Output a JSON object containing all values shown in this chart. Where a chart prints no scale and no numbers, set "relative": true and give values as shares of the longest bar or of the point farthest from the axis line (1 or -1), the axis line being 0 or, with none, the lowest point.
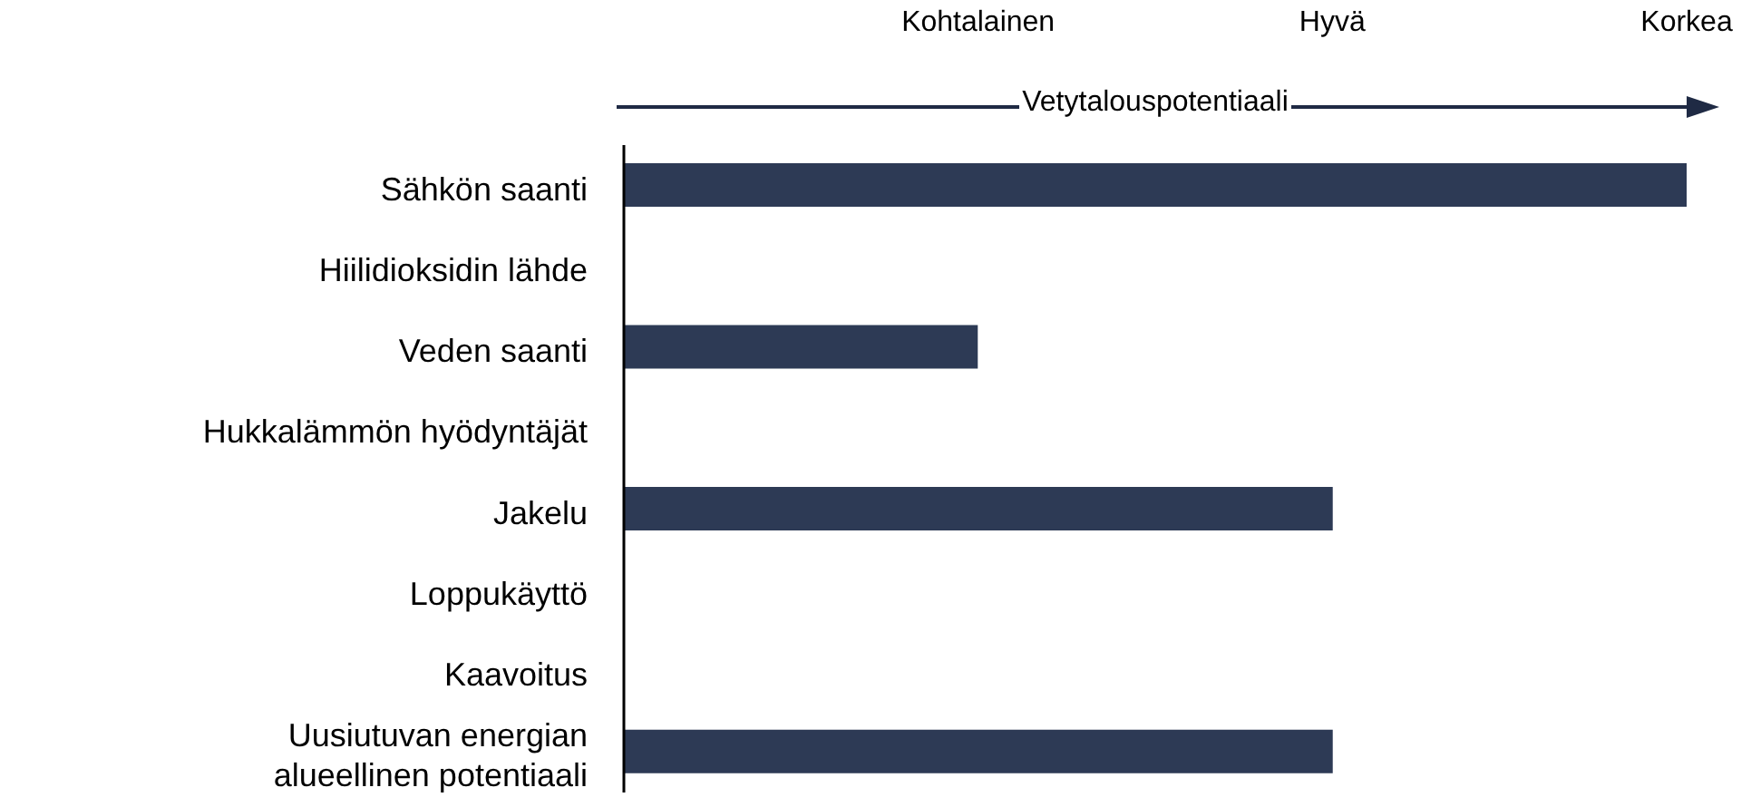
{
  "chart_data": {
    "type": "bar",
    "orientation": "horizontal",
    "relative": true,
    "xlabel": "Vetytalouspotentiaali",
    "categories": [
      "Sähkön saanti",
      "Hiilidioksidin lähde",
      "Veden saanti",
      "Hukkalämmön hyödyntäjät",
      "Jakelu",
      "Loppukäyttö",
      "Kaavoitus",
      "Uusiutuvan energian alueellinen potentiaali"
    ],
    "values": [
      1,
      0,
      0.333,
      0,
      0.667,
      0,
      0,
      0.667
    ],
    "color": "#2d3a55",
    "annotations": [
      "Kohtalainen",
      "Hyvä",
      "Korkea"
    ],
    "grid": false,
    "legend": false
  }
}
